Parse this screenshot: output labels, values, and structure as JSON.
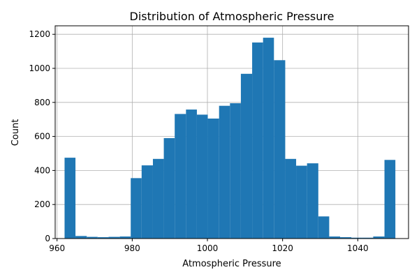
{
  "chart_data": {
    "type": "bar",
    "title": "Distribution of Atmospheric Pressure",
    "xlabel": "Atmospheric Pressure",
    "ylabel": "Count",
    "xlim": [
      959.5,
      1053.5
    ],
    "ylim": [
      0,
      1250
    ],
    "xticks": [
      960,
      980,
      1000,
      1020,
      1040
    ],
    "yticks": [
      0,
      200,
      400,
      600,
      800,
      1000,
      1200
    ],
    "grid": true,
    "bar_color": "#1f77b4",
    "bins": [
      {
        "x0": 962.0,
        "x1": 964.9,
        "count": 475
      },
      {
        "x0": 964.9,
        "x1": 967.9,
        "count": 15
      },
      {
        "x0": 967.9,
        "x1": 970.8,
        "count": 10
      },
      {
        "x0": 970.8,
        "x1": 973.7,
        "count": 8
      },
      {
        "x0": 973.7,
        "x1": 976.7,
        "count": 10
      },
      {
        "x0": 976.7,
        "x1": 979.6,
        "count": 12
      },
      {
        "x0": 979.6,
        "x1": 982.5,
        "count": 355
      },
      {
        "x0": 982.5,
        "x1": 985.5,
        "count": 430
      },
      {
        "x0": 985.5,
        "x1": 988.4,
        "count": 468
      },
      {
        "x0": 988.4,
        "x1": 991.3,
        "count": 590
      },
      {
        "x0": 991.3,
        "x1": 994.3,
        "count": 732
      },
      {
        "x0": 994.3,
        "x1": 997.2,
        "count": 758
      },
      {
        "x0": 997.2,
        "x1": 1000.1,
        "count": 728
      },
      {
        "x0": 1000.1,
        "x1": 1003.1,
        "count": 705
      },
      {
        "x0": 1003.1,
        "x1": 1006.0,
        "count": 780
      },
      {
        "x0": 1006.0,
        "x1": 1008.9,
        "count": 795
      },
      {
        "x0": 1008.9,
        "x1": 1011.9,
        "count": 968
      },
      {
        "x0": 1011.9,
        "x1": 1014.8,
        "count": 1152
      },
      {
        "x0": 1014.8,
        "x1": 1017.7,
        "count": 1180
      },
      {
        "x0": 1017.7,
        "x1": 1020.7,
        "count": 1048
      },
      {
        "x0": 1020.7,
        "x1": 1023.6,
        "count": 468
      },
      {
        "x0": 1023.6,
        "x1": 1026.5,
        "count": 428
      },
      {
        "x0": 1026.5,
        "x1": 1029.5,
        "count": 442
      },
      {
        "x0": 1029.5,
        "x1": 1032.4,
        "count": 130
      },
      {
        "x0": 1032.4,
        "x1": 1035.3,
        "count": 12
      },
      {
        "x0": 1035.3,
        "x1": 1038.3,
        "count": 8
      },
      {
        "x0": 1038.3,
        "x1": 1041.2,
        "count": 5
      },
      {
        "x0": 1041.2,
        "x1": 1044.1,
        "count": 5
      },
      {
        "x0": 1044.1,
        "x1": 1047.1,
        "count": 12
      },
      {
        "x0": 1047.1,
        "x1": 1050.0,
        "count": 462
      }
    ]
  }
}
